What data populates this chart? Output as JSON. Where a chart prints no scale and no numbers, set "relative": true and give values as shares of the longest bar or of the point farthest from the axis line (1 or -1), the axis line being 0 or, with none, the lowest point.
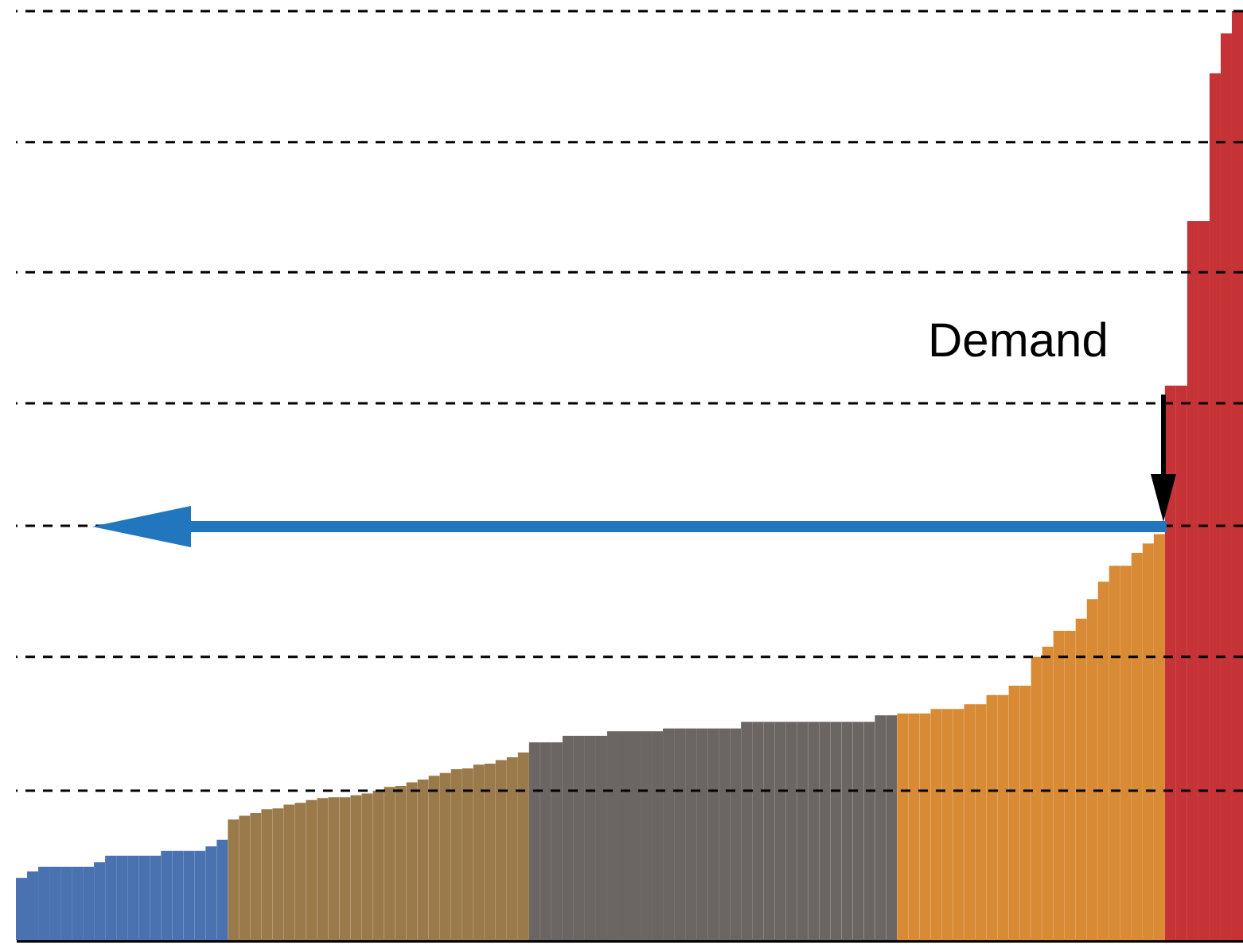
{
  "chart_data": {
    "type": "bar",
    "relative": true,
    "categories": [
      null,
      null,
      null,
      null,
      null,
      null,
      null,
      null,
      null,
      null,
      null,
      null,
      null,
      null,
      null,
      null,
      null,
      null,
      null,
      null,
      null,
      null,
      null,
      null,
      null,
      null,
      null,
      null,
      null,
      null,
      null,
      null,
      null,
      null,
      null,
      null,
      null,
      null,
      null,
      null,
      null,
      null,
      null,
      null,
      null,
      null,
      null,
      null,
      null,
      null,
      null,
      null,
      null,
      null,
      null,
      null,
      null,
      null,
      null,
      null,
      null,
      null,
      null,
      null,
      null,
      null,
      null,
      null,
      null,
      null,
      null,
      null,
      null,
      null,
      null,
      null,
      null,
      null,
      null,
      null,
      null,
      null,
      null,
      null,
      null,
      null,
      null,
      null,
      null,
      null,
      null,
      null,
      null,
      null,
      null,
      null,
      null,
      null,
      null,
      null,
      null,
      null,
      null,
      null,
      null,
      null,
      null,
      null,
      null,
      null
    ],
    "values": [
      0.067,
      0.074,
      0.079,
      0.079,
      0.079,
      0.079,
      0.079,
      0.084,
      0.091,
      0.091,
      0.091,
      0.091,
      0.091,
      0.096,
      0.096,
      0.096,
      0.096,
      0.101,
      0.108,
      0.13,
      0.134,
      0.137,
      0.141,
      0.142,
      0.146,
      0.148,
      0.151,
      0.153,
      0.154,
      0.154,
      0.156,
      0.158,
      0.161,
      0.165,
      0.166,
      0.17,
      0.173,
      0.177,
      0.18,
      0.184,
      0.185,
      0.189,
      0.19,
      0.194,
      0.197,
      0.202,
      0.213,
      0.213,
      0.213,
      0.22,
      0.22,
      0.22,
      0.22,
      0.225,
      0.225,
      0.225,
      0.225,
      0.225,
      0.228,
      0.228,
      0.228,
      0.228,
      0.228,
      0.228,
      0.228,
      0.235,
      0.235,
      0.235,
      0.235,
      0.235,
      0.235,
      0.235,
      0.235,
      0.235,
      0.235,
      0.235,
      0.235,
      0.242,
      0.242,
      0.244,
      0.244,
      0.244,
      0.249,
      0.249,
      0.249,
      0.254,
      0.254,
      0.264,
      0.264,
      0.274,
      0.274,
      0.305,
      0.316,
      0.333,
      0.333,
      0.346,
      0.367,
      0.386,
      0.403,
      0.403,
      0.417,
      0.427,
      0.437,
      0.597,
      0.597,
      0.774,
      0.774,
      0.933,
      0.976,
      1
    ],
    "colors": [
      "#4a72b0",
      "#4a72b0",
      "#4a72b0",
      "#4a72b0",
      "#4a72b0",
      "#4a72b0",
      "#4a72b0",
      "#4a72b0",
      "#4a72b0",
      "#4a72b0",
      "#4a72b0",
      "#4a72b0",
      "#4a72b0",
      "#4a72b0",
      "#4a72b0",
      "#4a72b0",
      "#4a72b0",
      "#4a72b0",
      "#4a72b0",
      "#9a7a4a",
      "#9a7a4a",
      "#9a7a4a",
      "#9a7a4a",
      "#9a7a4a",
      "#9a7a4a",
      "#9a7a4a",
      "#9a7a4a",
      "#9a7a4a",
      "#9a7a4a",
      "#9a7a4a",
      "#9a7a4a",
      "#9a7a4a",
      "#9a7a4a",
      "#9a7a4a",
      "#9a7a4a",
      "#9a7a4a",
      "#9a7a4a",
      "#9a7a4a",
      "#9a7a4a",
      "#9a7a4a",
      "#9a7a4a",
      "#9a7a4a",
      "#9a7a4a",
      "#9a7a4a",
      "#9a7a4a",
      "#9a7a4a",
      "#6b6664",
      "#6b6664",
      "#6b6664",
      "#6b6664",
      "#6b6664",
      "#6b6664",
      "#6b6664",
      "#6b6664",
      "#6b6664",
      "#6b6664",
      "#6b6664",
      "#6b6664",
      "#6b6664",
      "#6b6664",
      "#6b6664",
      "#6b6664",
      "#6b6664",
      "#6b6664",
      "#6b6664",
      "#6b6664",
      "#6b6664",
      "#6b6664",
      "#6b6664",
      "#6b6664",
      "#6b6664",
      "#6b6664",
      "#6b6664",
      "#6b6664",
      "#6b6664",
      "#6b6664",
      "#6b6664",
      "#6b6664",
      "#6b6664",
      "#d88a35",
      "#d88a35",
      "#d88a35",
      "#d88a35",
      "#d88a35",
      "#d88a35",
      "#d88a35",
      "#d88a35",
      "#d88a35",
      "#d88a35",
      "#d88a35",
      "#d88a35",
      "#d88a35",
      "#d88a35",
      "#d88a35",
      "#d88a35",
      "#d88a35",
      "#d88a35",
      "#d88a35",
      "#d88a35",
      "#d88a35",
      "#d88a35",
      "#d88a35",
      "#d88a35",
      "#c63336",
      "#c63336",
      "#c63336",
      "#c63336",
      "#c63336",
      "#c63336",
      "#c63336"
    ],
    "ref_lines": [
      {
        "axis": "y",
        "value": 1.0,
        "color": "#000000",
        "line_style": "dashed"
      },
      {
        "axis": "y",
        "value": 0.859,
        "color": "#000000",
        "line_style": "dashed"
      },
      {
        "axis": "y",
        "value": 0.719,
        "color": "#000000",
        "line_style": "dashed"
      },
      {
        "axis": "y",
        "value": 0.578,
        "color": "#000000",
        "line_style": "dashed"
      },
      {
        "axis": "y",
        "value": 0.446,
        "color": "#000000",
        "line_style": "dashed"
      },
      {
        "axis": "y",
        "value": 0.305,
        "color": "#000000",
        "line_style": "dashed"
      },
      {
        "axis": "y",
        "value": 0.161,
        "color": "#000000",
        "line_style": "dashed"
      }
    ],
    "annotations": [
      "Demand"
    ]
  }
}
